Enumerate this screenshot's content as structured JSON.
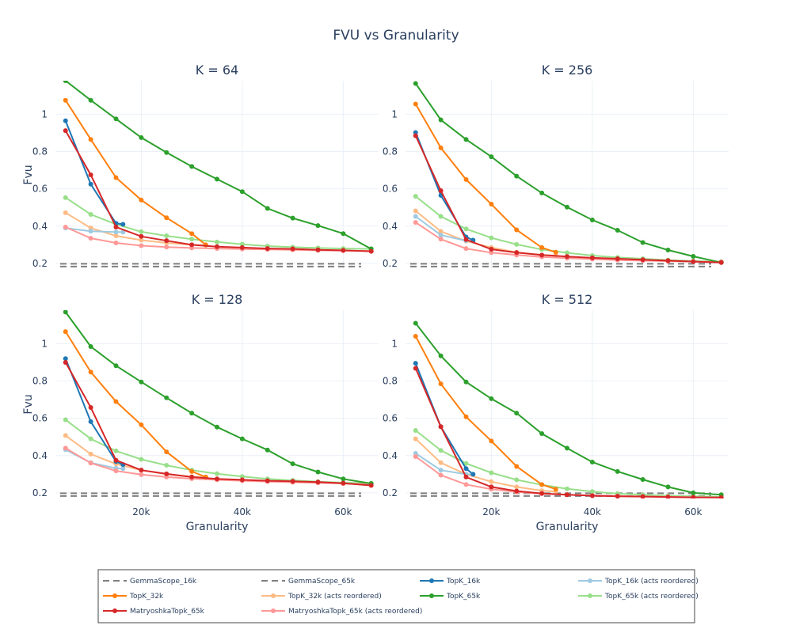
{
  "chart_data": {
    "type": "line",
    "title": "FVU vs Granularity",
    "x_label": "Granularity",
    "y_label": "Fvu",
    "x_range": [
      3000,
      67000
    ],
    "y_range": [
      0.17,
      1.18
    ],
    "x_ticks": [
      {
        "value": 20000,
        "label": "20k"
      },
      {
        "value": 40000,
        "label": "40k"
      },
      {
        "value": 60000,
        "label": "60k"
      }
    ],
    "y_ticks": [
      {
        "value": 0.2,
        "label": "0.2"
      },
      {
        "value": 0.4,
        "label": "0.4"
      },
      {
        "value": 0.6,
        "label": "0.6"
      },
      {
        "value": 0.8,
        "label": "0.8"
      },
      {
        "value": 1.0,
        "label": "1"
      }
    ],
    "legend": [
      {
        "name": "GemmaScope_16k",
        "color": "#7f7f7f",
        "dash": true
      },
      {
        "name": "GemmaScope_65k",
        "color": "#7f7f7f",
        "dash": true
      },
      {
        "name": "TopK_16k",
        "color": "#1f77b4",
        "dash": false
      },
      {
        "name": "TopK_16k (acts reordered)",
        "color": "#9ecae1",
        "dash": false
      },
      {
        "name": "TopK_32k",
        "color": "#ff7f0e",
        "dash": false
      },
      {
        "name": "TopK_32k (acts reordered)",
        "color": "#fdbb84",
        "dash": false
      },
      {
        "name": "TopK_65k",
        "color": "#2ca02c",
        "dash": false
      },
      {
        "name": "TopK_65k (acts reordered)",
        "color": "#98df8a",
        "dash": false
      },
      {
        "name": "MatryoshkaTopk_65k",
        "color": "#d62728",
        "dash": false
      },
      {
        "name": "MatryoshkaTopk_65k (acts reordered)",
        "color": "#ff9896",
        "dash": false
      }
    ],
    "x_16k": [
      5000,
      10000,
      15000,
      16384
    ],
    "x_32k": [
      5000,
      10000,
      15000,
      20000,
      25000,
      30000,
      32768
    ],
    "x_65k": [
      5000,
      10000,
      15000,
      20000,
      25000,
      30000,
      35000,
      40000,
      45000,
      50000,
      55000,
      60000,
      65536
    ],
    "subplots": [
      {
        "title": "K = 64",
        "series": [
          {
            "name": "GemmaScope_16k",
            "kind": "hline",
            "y": 0.198
          },
          {
            "name": "GemmaScope_65k",
            "kind": "hline",
            "y": 0.183
          },
          {
            "name": "TopK_65k (acts reordered)",
            "xs": "x_65k",
            "values": [
              0.553,
              0.463,
              0.41,
              0.37,
              0.348,
              0.33,
              0.315,
              0.303,
              0.293,
              0.287,
              0.283,
              0.28,
              0.278
            ]
          },
          {
            "name": "TopK_32k (acts reordered)",
            "xs": "x_32k",
            "values": [
              0.472,
              0.39,
              0.348,
              0.325,
              0.31,
              0.3,
              0.297
            ]
          },
          {
            "name": "TopK_16k (acts reordered)",
            "xs": "x_16k",
            "values": [
              0.39,
              0.373,
              0.368,
              0.368
            ]
          },
          {
            "name": "MatryoshkaTopk_65k (acts reordered)",
            "xs": "x_65k",
            "values": [
              0.395,
              0.335,
              0.31,
              0.295,
              0.288,
              0.283,
              0.28,
              0.277,
              0.275,
              0.273,
              0.27,
              0.268,
              0.267
            ]
          },
          {
            "name": "TopK_65k",
            "xs": "x_65k",
            "values": [
              1.18,
              1.075,
              0.975,
              0.875,
              0.795,
              0.72,
              0.652,
              0.585,
              0.495,
              0.443,
              0.403,
              0.36,
              0.278
            ]
          },
          {
            "name": "TopK_32k",
            "xs": "x_32k",
            "values": [
              1.075,
              0.865,
              0.66,
              0.54,
              0.445,
              0.36,
              0.3
            ]
          },
          {
            "name": "TopK_16k",
            "xs": "x_16k",
            "values": [
              0.965,
              0.625,
              0.415,
              0.41
            ]
          },
          {
            "name": "MatryoshkaTopk_65k",
            "xs": "x_65k",
            "values": [
              0.912,
              0.675,
              0.395,
              0.345,
              0.322,
              0.3,
              0.29,
              0.285,
              0.28,
              0.278,
              0.273,
              0.27,
              0.265
            ]
          }
        ]
      },
      {
        "title": "K = 256",
        "series": [
          {
            "name": "GemmaScope_16k",
            "kind": "hline",
            "y": 0.198
          },
          {
            "name": "GemmaScope_65k",
            "kind": "hline",
            "y": 0.183
          },
          {
            "name": "TopK_65k (acts reordered)",
            "xs": "x_65k",
            "values": [
              0.56,
              0.452,
              0.385,
              0.337,
              0.302,
              0.275,
              0.257,
              0.242,
              0.232,
              0.225,
              0.218,
              0.213,
              0.21
            ]
          },
          {
            "name": "TopK_32k (acts reordered)",
            "xs": "x_32k",
            "values": [
              0.482,
              0.372,
              0.32,
              0.285,
              0.26,
              0.245,
              0.242
            ]
          },
          {
            "name": "TopK_16k (acts reordered)",
            "xs": "x_16k",
            "values": [
              0.452,
              0.352,
              0.322,
              0.32
            ]
          },
          {
            "name": "MatryoshkaTopk_65k (acts reordered)",
            "xs": "x_65k",
            "values": [
              0.42,
              0.33,
              0.28,
              0.258,
              0.245,
              0.235,
              0.228,
              0.223,
              0.218,
              0.215,
              0.212,
              0.21,
              0.208
            ]
          },
          {
            "name": "TopK_65k",
            "xs": "x_65k",
            "values": [
              1.165,
              0.97,
              0.865,
              0.772,
              0.668,
              0.578,
              0.502,
              0.433,
              0.378,
              0.312,
              0.272,
              0.238,
              0.205
            ]
          },
          {
            "name": "TopK_32k",
            "xs": "x_32k",
            "values": [
              1.055,
              0.82,
              0.65,
              0.518,
              0.38,
              0.285,
              0.26
            ]
          },
          {
            "name": "TopK_16k",
            "xs": "x_16k",
            "values": [
              0.902,
              0.565,
              0.342,
              0.325
            ]
          },
          {
            "name": "MatryoshkaTopk_65k",
            "xs": "x_65k",
            "values": [
              0.885,
              0.59,
              0.328,
              0.276,
              0.258,
              0.245,
              0.237,
              0.23,
              0.225,
              0.22,
              0.215,
              0.21,
              0.205
            ]
          }
        ]
      },
      {
        "title": "K = 128",
        "series": [
          {
            "name": "GemmaScope_16k",
            "kind": "hline",
            "y": 0.198
          },
          {
            "name": "GemmaScope_65k",
            "kind": "hline",
            "y": 0.183
          },
          {
            "name": "TopK_65k (acts reordered)",
            "xs": "x_65k",
            "values": [
              0.592,
              0.49,
              0.425,
              0.38,
              0.348,
              0.322,
              0.303,
              0.288,
              0.275,
              0.267,
              0.26,
              0.255,
              0.252
            ]
          },
          {
            "name": "TopK_32k (acts reordered)",
            "xs": "x_32k",
            "values": [
              0.508,
              0.408,
              0.355,
              0.322,
              0.3,
              0.287,
              0.285
            ]
          },
          {
            "name": "TopK_16k (acts reordered)",
            "xs": "x_16k",
            "values": [
              0.432,
              0.362,
              0.332,
              0.33
            ]
          },
          {
            "name": "MatryoshkaTopk_65k (acts reordered)",
            "xs": "x_65k",
            "values": [
              0.44,
              0.36,
              0.318,
              0.298,
              0.285,
              0.276,
              0.27,
              0.265,
              0.261,
              0.257,
              0.254,
              0.25,
              0.245
            ]
          },
          {
            "name": "TopK_65k",
            "xs": "x_65k",
            "values": [
              1.17,
              0.985,
              0.882,
              0.795,
              0.71,
              0.628,
              0.553,
              0.49,
              0.43,
              0.356,
              0.312,
              0.275,
              0.25
            ]
          },
          {
            "name": "TopK_32k",
            "xs": "x_32k",
            "values": [
              1.065,
              0.848,
              0.69,
              0.565,
              0.42,
              0.315,
              0.285
            ]
          },
          {
            "name": "TopK_16k",
            "xs": "x_16k",
            "values": [
              0.92,
              0.582,
              0.368,
              0.352
            ]
          },
          {
            "name": "MatryoshkaTopk_65k",
            "xs": "x_65k",
            "values": [
              0.9,
              0.658,
              0.375,
              0.322,
              0.302,
              0.285,
              0.275,
              0.27,
              0.265,
              0.262,
              0.258,
              0.252,
              0.24
            ]
          }
        ]
      },
      {
        "title": "K = 512",
        "series": [
          {
            "name": "GemmaScope_16k",
            "kind": "hline",
            "y": 0.198
          },
          {
            "name": "GemmaScope_65k",
            "kind": "hline",
            "y": 0.183
          },
          {
            "name": "TopK_65k (acts reordered)",
            "xs": "x_65k",
            "values": [
              0.535,
              0.428,
              0.358,
              0.308,
              0.27,
              0.243,
              0.222,
              0.207,
              0.196,
              0.19,
              0.185,
              0.182,
              0.178
            ]
          },
          {
            "name": "TopK_32k (acts reordered)",
            "xs": "x_32k",
            "values": [
              0.49,
              0.362,
              0.3,
              0.26,
              0.232,
              0.212,
              0.207
            ]
          },
          {
            "name": "TopK_16k (acts reordered)",
            "xs": "x_16k",
            "values": [
              0.412,
              0.322,
              0.3,
              0.3
            ]
          },
          {
            "name": "MatryoshkaTopk_65k (acts reordered)",
            "xs": "x_65k",
            "values": [
              0.395,
              0.295,
              0.245,
              0.22,
              0.205,
              0.196,
              0.19,
              0.186,
              0.183,
              0.181,
              0.179,
              0.177,
              0.176
            ]
          },
          {
            "name": "TopK_65k",
            "xs": "x_65k",
            "values": [
              1.11,
              0.935,
              0.795,
              0.705,
              0.628,
              0.518,
              0.44,
              0.365,
              0.315,
              0.272,
              0.232,
              0.2,
              0.19
            ]
          },
          {
            "name": "TopK_32k",
            "xs": "x_32k",
            "values": [
              1.04,
              0.785,
              0.608,
              0.478,
              0.342,
              0.245,
              0.22
            ]
          },
          {
            "name": "TopK_16k",
            "xs": "x_16k",
            "values": [
              0.895,
              0.555,
              0.33,
              0.3
            ]
          },
          {
            "name": "MatryoshkaTopk_65k",
            "xs": "x_65k",
            "values": [
              0.868,
              0.555,
              0.285,
              0.232,
              0.21,
              0.197,
              0.19,
              0.185,
              0.182,
              0.18,
              0.178,
              0.176,
              0.175
            ]
          }
        ]
      }
    ]
  }
}
